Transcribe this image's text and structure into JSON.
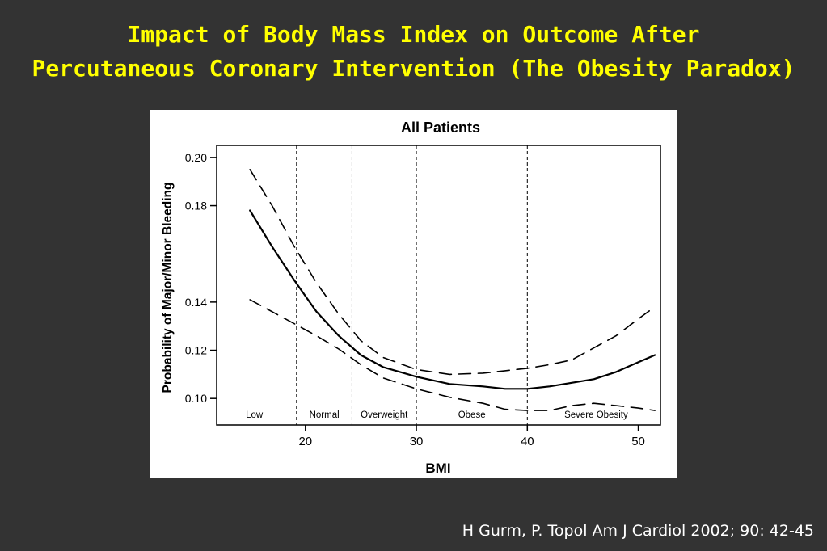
{
  "slide": {
    "title_line1": "Impact of Body Mass Index on Outcome After",
    "title_line2": "Percutaneous Coronary Intervention (The Obesity Paradox)",
    "citation": "H Gurm, P. Topol Am J Cardiol 2002; 90: 42-45",
    "title_color": "#ffff00",
    "background_color": "#333333"
  },
  "chart_data": {
    "type": "line",
    "title": "All Patients",
    "xlabel": "BMI",
    "ylabel": "Probability of Major/Minor Bleeding",
    "xlim": [
      12,
      52
    ],
    "ylim": [
      0.089,
      0.205
    ],
    "xticks": [
      20,
      30,
      40,
      50
    ],
    "yticks": [
      0.1,
      0.12,
      0.14,
      0.18,
      0.2
    ],
    "yticks_labels": [
      "0.10",
      "0.12",
      "0.14",
      "0.18",
      "0.20"
    ],
    "category_boundaries": [
      19.2,
      24.2,
      30,
      40
    ],
    "regions": [
      {
        "label": "Low",
        "x": 15.4
      },
      {
        "label": "Normal",
        "x": 21.7
      },
      {
        "label": "Overweight",
        "x": 27.1
      },
      {
        "label": "Obese",
        "x": 35
      },
      {
        "label": "Severe Obesity",
        "x": 46.2
      }
    ],
    "series": [
      {
        "role": "estimate",
        "style": "solid",
        "x": [
          15,
          17,
          19,
          21,
          23,
          25,
          27,
          30,
          33,
          36,
          38,
          40,
          42,
          44,
          46,
          48,
          50,
          51.5
        ],
        "y": [
          0.178,
          0.163,
          0.149,
          0.136,
          0.126,
          0.118,
          0.113,
          0.109,
          0.106,
          0.105,
          0.104,
          0.104,
          0.105,
          0.1065,
          0.108,
          0.111,
          0.115,
          0.118
        ]
      },
      {
        "role": "upper",
        "style": "dashed",
        "x": [
          15,
          17,
          19,
          21,
          23,
          25,
          27,
          30,
          33,
          36,
          38,
          40,
          42,
          44,
          46,
          48,
          50,
          51.5
        ],
        "y": [
          0.195,
          0.18,
          0.163,
          0.148,
          0.135,
          0.124,
          0.117,
          0.112,
          0.11,
          0.1105,
          0.1115,
          0.1125,
          0.114,
          0.116,
          0.121,
          0.126,
          0.133,
          0.138
        ]
      },
      {
        "role": "lower",
        "style": "dashed",
        "x": [
          15,
          17,
          19,
          21,
          23,
          25,
          27,
          30,
          33,
          36,
          38,
          40,
          42,
          44,
          46,
          48,
          50,
          51.5
        ],
        "y": [
          0.141,
          0.136,
          0.131,
          0.126,
          0.1205,
          0.114,
          0.1085,
          0.104,
          0.1005,
          0.098,
          0.0955,
          0.095,
          0.095,
          0.097,
          0.098,
          0.097,
          0.096,
          0.095
        ]
      }
    ]
  }
}
